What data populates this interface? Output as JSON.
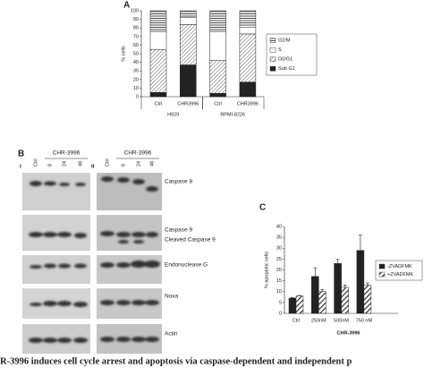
{
  "chart_data": [
    {
      "type": "bar",
      "label": "A",
      "stacked": true,
      "ylabel": "% cells",
      "categories": [
        "Ctrl",
        "CHR3996",
        "Ctrl",
        "CHR3996"
      ],
      "group_labels": [
        "H929",
        "RPMI-8226"
      ],
      "ylim": [
        0,
        100
      ],
      "yticks": [
        0,
        10,
        20,
        30,
        40,
        50,
        60,
        70,
        80,
        90,
        100
      ],
      "series": [
        {
          "name": "Sub G1",
          "color": "#222222",
          "pattern": "solid",
          "values": [
            5,
            37,
            4,
            17
          ]
        },
        {
          "name": "G0/G1",
          "color": "#222222",
          "pattern": "diagonal",
          "values": [
            50,
            47,
            38,
            56
          ]
        },
        {
          "name": "S",
          "color": "#222222",
          "pattern": "none",
          "values": [
            21,
            8,
            34,
            8
          ]
        },
        {
          "name": "G2/M",
          "color": "#222222",
          "pattern": "horizontal",
          "values": [
            24,
            8,
            24,
            19
          ]
        }
      ]
    },
    {
      "type": "bar",
      "label": "C",
      "stacked": false,
      "ylabel": "% apoptotic cells",
      "xlabel": "CHR-3996",
      "categories": [
        "Ctrl",
        "250nM",
        "500nM",
        "750 nM"
      ],
      "ylim": [
        0,
        40
      ],
      "yticks": [
        0,
        5,
        10,
        15,
        20,
        25,
        30,
        35,
        40
      ],
      "series": [
        {
          "name": "-ZVADFMK",
          "color": "#222222",
          "pattern": "solid",
          "values": [
            7,
            17,
            23,
            29
          ],
          "errors": [
            0.3,
            4,
            2,
            7
          ]
        },
        {
          "name": "+ZVADFMK",
          "color": "#222222",
          "pattern": "thick-diagonal",
          "values": [
            8,
            10,
            12,
            13
          ],
          "errors": [
            0.3,
            1,
            1,
            1
          ]
        }
      ]
    }
  ],
  "blot": {
    "label": "B",
    "subpanels": [
      {
        "label": "i",
        "treatment": "CHR-3996",
        "lanes": [
          "Ctrl",
          "8",
          "24",
          "48"
        ]
      },
      {
        "label": "ii",
        "treatment": "CHR-3996",
        "lanes": [
          "Ctrl",
          "8",
          "24",
          "48"
        ]
      }
    ],
    "proteins": [
      "Caspase 8",
      "Caspase 9",
      "Cleaved Caspase 9",
      "Endonuclease G",
      "Noxa",
      "Actin"
    ]
  },
  "caption": "R-3996 induces cell cycle arrest and apoptosis via caspase-dependent and independent p"
}
